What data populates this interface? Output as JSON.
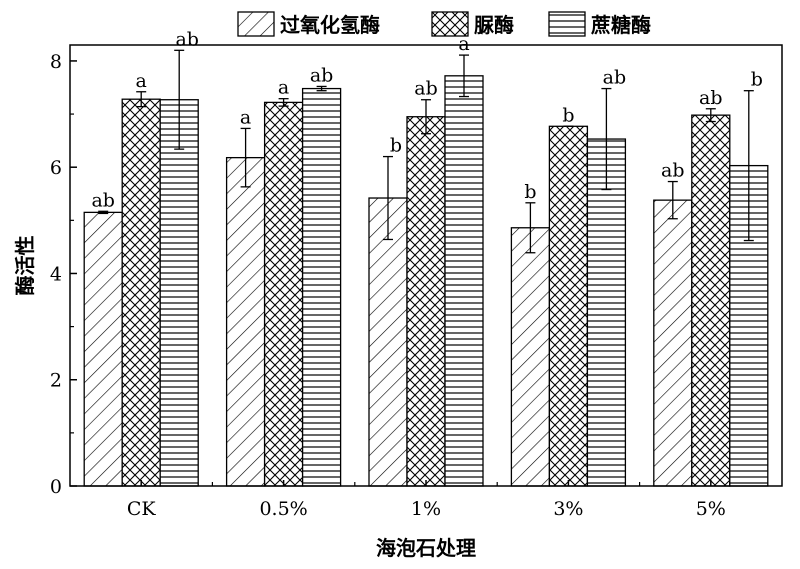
{
  "chart_data": {
    "type": "bar",
    "categories": [
      "CK",
      "0.5%",
      "1%",
      "3%",
      "5%"
    ],
    "xlabel": "海泡石处理",
    "ylabel": "酶活性",
    "ylim": [
      0,
      8.3
    ],
    "yticks": [
      0,
      2,
      4,
      6,
      8
    ],
    "legend_position": "top",
    "grid": false,
    "series": [
      {
        "name": "过氧化氢酶",
        "pattern": "diagonal-hatch",
        "values": [
          5.15,
          6.18,
          5.42,
          4.86,
          5.38
        ],
        "errors": [
          0.02,
          0.55,
          0.78,
          0.47,
          0.35
        ],
        "labels": [
          "ab",
          "a",
          "b",
          "b",
          "ab"
        ]
      },
      {
        "name": "脲酶",
        "pattern": "cross-hatch",
        "values": [
          7.28,
          7.22,
          6.95,
          6.77,
          6.98
        ],
        "errors": [
          0.14,
          0.07,
          0.32,
          0.0,
          0.12
        ],
        "labels": [
          "a",
          "a",
          "ab",
          "b",
          "ab"
        ]
      },
      {
        "name": "蔗糖酶",
        "pattern": "horizontal-lines",
        "values": [
          7.27,
          7.48,
          7.72,
          6.53,
          6.03
        ],
        "errors": [
          0.93,
          0.04,
          0.39,
          0.95,
          1.41
        ],
        "labels": [
          "ab",
          "ab",
          "a",
          "ab",
          "b"
        ]
      }
    ]
  }
}
